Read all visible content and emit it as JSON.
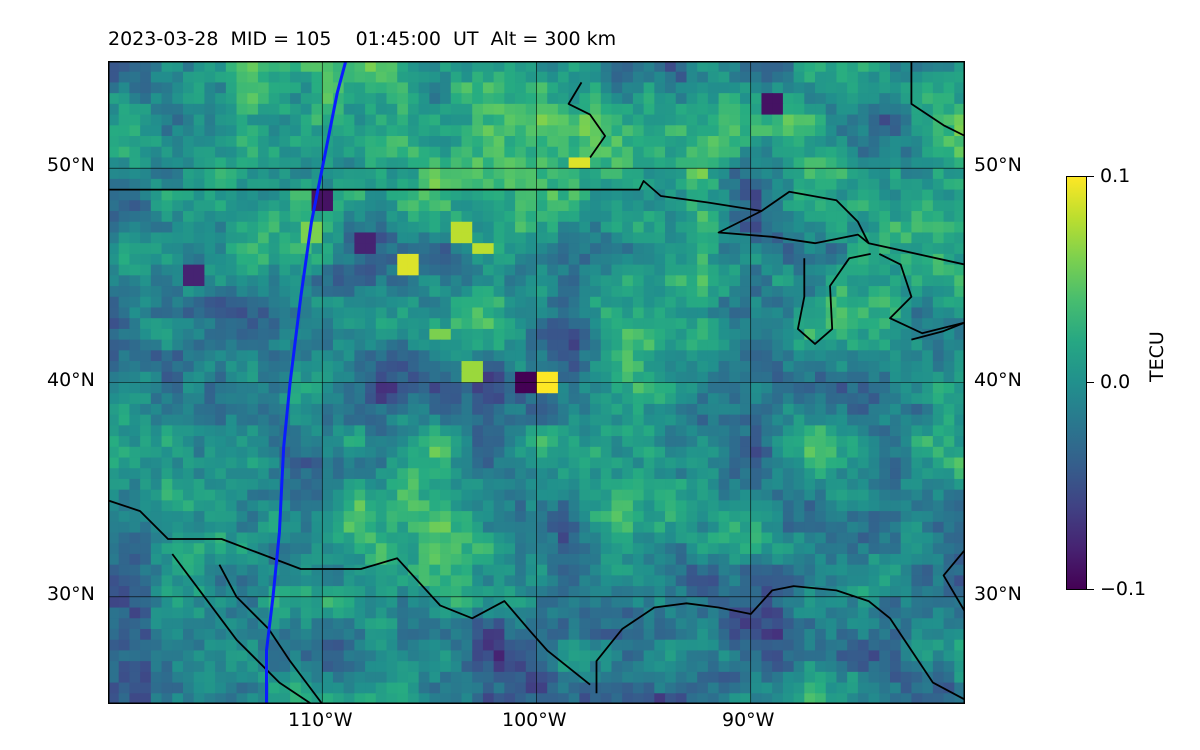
{
  "title": {
    "date": "2023-03-28",
    "mid_text": "MID = 105",
    "time_text": "01:45:00  UT",
    "alt_text": "Alt = 300 km"
  },
  "map": {
    "extent": {
      "lon_min": -120,
      "lon_max": -80,
      "lat_min": 25,
      "lat_max": 55
    },
    "gridlines": {
      "lon": [
        -110,
        -100,
        -90
      ],
      "lat": [
        30,
        40,
        50
      ]
    },
    "x_tick_labels": [
      "110°W",
      "100°W",
      "90°W"
    ],
    "y_tick_labels_left": [
      "50°N",
      "40°N",
      "30°N"
    ],
    "y_tick_labels_right": [
      "50°N",
      "40°N",
      "30°N"
    ],
    "overlay_track": {
      "color": "#0a1cff",
      "points": [
        [
          -108.9,
          55.0
        ],
        [
          -109.3,
          53.5
        ],
        [
          -109.9,
          50.5
        ],
        [
          -110.5,
          47.5
        ],
        [
          -111.0,
          44.0
        ],
        [
          -111.5,
          40.0
        ],
        [
          -111.8,
          37.0
        ],
        [
          -111.9,
          35.0
        ],
        [
          -112.0,
          33.0
        ],
        [
          -112.3,
          30.0
        ],
        [
          -112.6,
          27.5
        ],
        [
          -112.6,
          25.0
        ]
      ]
    },
    "coastlines": [
      [
        [
          -120,
          49.0
        ],
        [
          -95.2,
          49.0
        ],
        [
          -95.0,
          49.4
        ],
        [
          -94.2,
          48.7
        ],
        [
          -92.0,
          48.4
        ],
        [
          -89.5,
          48.0
        ],
        [
          -88.2,
          48.9
        ],
        [
          -86.0,
          48.5
        ],
        [
          -85.0,
          47.5
        ],
        [
          -84.5,
          46.5
        ],
        [
          -80.0,
          45.5
        ]
      ],
      [
        [
          -89.5,
          48.0
        ],
        [
          -91.5,
          47.0
        ],
        [
          -89.0,
          46.8
        ],
        [
          -87.0,
          46.5
        ],
        [
          -85.0,
          46.9
        ],
        [
          -84.5,
          46.5
        ]
      ],
      [
        [
          -87.5,
          45.8
        ],
        [
          -87.5,
          44.0
        ],
        [
          -87.8,
          42.5
        ],
        [
          -87.0,
          41.8
        ],
        [
          -86.2,
          42.5
        ],
        [
          -86.3,
          44.5
        ],
        [
          -85.4,
          45.8
        ],
        [
          -84.4,
          46.0
        ]
      ],
      [
        [
          -84.0,
          46.0
        ],
        [
          -83.0,
          45.5
        ],
        [
          -82.5,
          44.0
        ],
        [
          -83.5,
          43.0
        ],
        [
          -82.0,
          42.3
        ],
        [
          -80.0,
          42.8
        ]
      ],
      [
        [
          -82.5,
          42.0
        ],
        [
          -81.0,
          42.4
        ],
        [
          -80.0,
          42.8
        ]
      ],
      [
        [
          -97.9,
          54.0
        ],
        [
          -98.5,
          53.0
        ],
        [
          -97.5,
          52.5
        ],
        [
          -96.8,
          51.5
        ],
        [
          -97.5,
          50.5
        ]
      ],
      [
        [
          -82.5,
          55.0
        ],
        [
          -82.5,
          53.0
        ],
        [
          -81.0,
          52.0
        ],
        [
          -80.0,
          51.5
        ]
      ],
      [
        [
          -120,
          34.5
        ],
        [
          -118.5,
          34.0
        ],
        [
          -117.2,
          32.7
        ],
        [
          -114.7,
          32.7
        ],
        [
          -111.0,
          31.3
        ],
        [
          -108.2,
          31.3
        ],
        [
          -106.5,
          31.8
        ],
        [
          -104.5,
          29.6
        ],
        [
          -103.0,
          29.0
        ],
        [
          -101.5,
          29.8
        ],
        [
          -100.3,
          28.4
        ],
        [
          -99.5,
          27.5
        ],
        [
          -97.5,
          25.9
        ]
      ],
      [
        [
          -114.8,
          31.5
        ],
        [
          -114.0,
          30.0
        ],
        [
          -112.5,
          28.5
        ],
        [
          -111.5,
          27.0
        ],
        [
          -110.0,
          25.0
        ]
      ],
      [
        [
          -117.0,
          32.0
        ],
        [
          -115.5,
          30.0
        ],
        [
          -114.0,
          28.0
        ],
        [
          -112.0,
          26.0
        ],
        [
          -110.5,
          25.0
        ]
      ],
      [
        [
          -97.2,
          25.5
        ],
        [
          -97.2,
          27.0
        ],
        [
          -96.0,
          28.5
        ],
        [
          -94.5,
          29.5
        ],
        [
          -93.0,
          29.7
        ],
        [
          -91.5,
          29.5
        ],
        [
          -90.0,
          29.2
        ],
        [
          -89.0,
          30.3
        ],
        [
          -88.0,
          30.5
        ],
        [
          -86.0,
          30.3
        ],
        [
          -84.5,
          29.8
        ],
        [
          -83.5,
          29.0
        ],
        [
          -82.5,
          27.5
        ],
        [
          -81.5,
          26.0
        ],
        [
          -80.0,
          25.2
        ]
      ],
      [
        [
          -80.0,
          29.3
        ],
        [
          -81.0,
          31.0
        ],
        [
          -80.0,
          32.2
        ]
      ]
    ]
  },
  "chart_data": {
    "type": "heatmap",
    "title": "2023-03-28  MID = 105    01:45:00  UT  Alt = 300 km",
    "xlabel": "",
    "ylabel": "",
    "x_ticks": [
      "110°W",
      "100°W",
      "90°W"
    ],
    "y_ticks": [
      "30°N",
      "40°N",
      "50°N"
    ],
    "colorbar": {
      "label": "TECU",
      "vmin": -0.1,
      "vmax": 0.1,
      "ticks": [
        "0.1",
        "0.0",
        "−0.1"
      ],
      "colormap": "viridis"
    },
    "grid": true,
    "hotspots": [
      {
        "lon": -98.0,
        "lat": 50.2,
        "value": 0.09
      },
      {
        "lon": -102.5,
        "lat": 46.2,
        "value": 0.08
      },
      {
        "lon": -106.0,
        "lat": 45.5,
        "value": 0.09
      },
      {
        "lon": -99.5,
        "lat": 40.0,
        "value": 0.1
      },
      {
        "lon": -103.0,
        "lat": 40.5,
        "value": 0.07
      },
      {
        "lon": -103.5,
        "lat": 47.0,
        "value": 0.08
      },
      {
        "lon": -104.5,
        "lat": 42.2,
        "value": 0.06
      },
      {
        "lon": -110.5,
        "lat": 47.0,
        "value": 0.06
      },
      {
        "lon": -100.5,
        "lat": 40.0,
        "value": -0.1
      },
      {
        "lon": -89.0,
        "lat": 53.0,
        "value": -0.09
      },
      {
        "lon": -110.0,
        "lat": 48.5,
        "value": -0.09
      },
      {
        "lon": -116.0,
        "lat": 45.0,
        "value": -0.08
      },
      {
        "lon": -108.0,
        "lat": 46.5,
        "value": -0.08
      }
    ]
  }
}
